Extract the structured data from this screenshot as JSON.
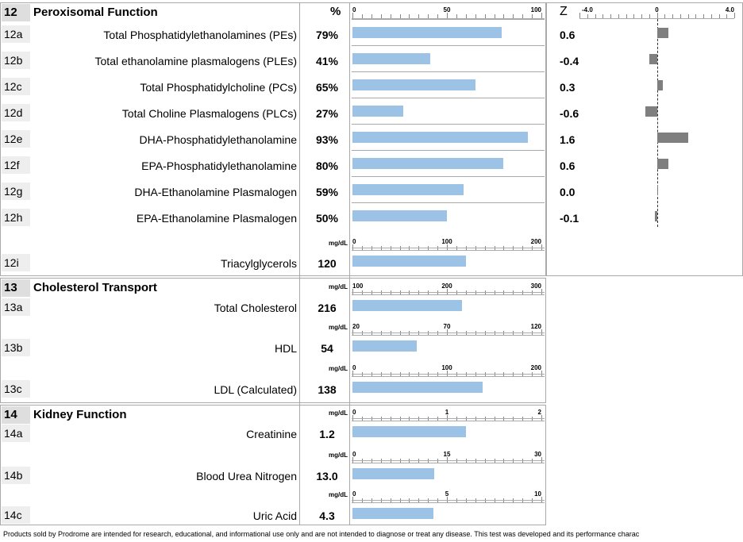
{
  "section12": {
    "num": "12",
    "title": "Peroxisomal Function",
    "pct_header": "%",
    "pct_scale": [
      "0",
      "50",
      "100"
    ],
    "z_header": "Z",
    "z_scale": [
      "-4.0",
      "0",
      "4.0"
    ],
    "rows": [
      {
        "code": "12a",
        "label": "Total Phosphatidylethanolamines (PEs)",
        "value": "79%",
        "pct": 79,
        "z_text": "0.6",
        "z": 0.6
      },
      {
        "code": "12b",
        "label": "Total ethanolamine plasmalogens (PLEs)",
        "value": "41%",
        "pct": 41,
        "z_text": "-0.4",
        "z": -0.4
      },
      {
        "code": "12c",
        "label": "Total Phosphatidylcholine (PCs)",
        "value": "65%",
        "pct": 65,
        "z_text": "0.3",
        "z": 0.3
      },
      {
        "code": "12d",
        "label": "Total Choline Plasmalogens (PLCs)",
        "value": "27%",
        "pct": 27,
        "z_text": "-0.6",
        "z": -0.6
      },
      {
        "code": "12e",
        "label": "DHA-Phosphatidylethanolamine",
        "value": "93%",
        "pct": 93,
        "z_text": "1.6",
        "z": 1.6
      },
      {
        "code": "12f",
        "label": "EPA-Phosphatidylethanolamine",
        "value": "80%",
        "pct": 80,
        "z_text": "0.6",
        "z": 0.6
      },
      {
        "code": "12g",
        "label": "DHA-Ethanolamine Plasmalogen",
        "value": "59%",
        "pct": 59,
        "z_text": "0.0",
        "z": 0.0
      },
      {
        "code": "12h",
        "label": "EPA-Ethanolamine Plasmalogen",
        "value": "50%",
        "pct": 50,
        "z_text": "-0.1",
        "z": -0.1
      }
    ],
    "tag_row": {
      "code": "12i",
      "label": "Triacylglycerols",
      "value": "120",
      "unit": "mg/dL",
      "scale": [
        "0",
        "100",
        "200"
      ],
      "num": 120,
      "min": 0,
      "max": 200
    }
  },
  "section13": {
    "num": "13",
    "title": "Cholesterol Transport",
    "rows": [
      {
        "code": "13a",
        "label": "Total Cholesterol",
        "value": "216",
        "unit": "mg/dL",
        "scale": [
          "100",
          "200",
          "300"
        ],
        "num": 216,
        "min": 100,
        "max": 300
      },
      {
        "code": "13b",
        "label": "HDL",
        "value": "54",
        "unit": "mg/dL",
        "scale": [
          "20",
          "70",
          "120"
        ],
        "num": 54,
        "min": 20,
        "max": 120
      },
      {
        "code": "13c",
        "label": "LDL (Calculated)",
        "value": "138",
        "unit": "mg/dL",
        "scale": [
          "0",
          "100",
          "200"
        ],
        "num": 138,
        "min": 0,
        "max": 200
      }
    ]
  },
  "section14": {
    "num": "14",
    "title": "Kidney Function",
    "rows": [
      {
        "code": "14a",
        "label": "Creatinine",
        "value": "1.2",
        "unit": "mg/dL",
        "scale": [
          "0",
          "1",
          "2"
        ],
        "num": 1.2,
        "min": 0,
        "max": 2
      },
      {
        "code": "14b",
        "label": "Blood Urea Nitrogen",
        "value": "13.0",
        "unit": "mg/dL",
        "scale": [
          "0",
          "15",
          "30"
        ],
        "num": 13.0,
        "min": 0,
        "max": 30
      },
      {
        "code": "14c",
        "label": "Uric Acid",
        "value": "4.3",
        "unit": "mg/dL",
        "scale": [
          "0",
          "5",
          "10"
        ],
        "num": 4.3,
        "min": 0,
        "max": 10
      }
    ]
  },
  "footer": "Products sold by Prodrome are intended for research, educational, and informational use only and are not intended to diagnose or treat any disease. This test was developed and its performance charac",
  "colors": {
    "bar": "#9cc3e6",
    "zbar": "#7f7f7f",
    "border": "#a9a9a9"
  }
}
